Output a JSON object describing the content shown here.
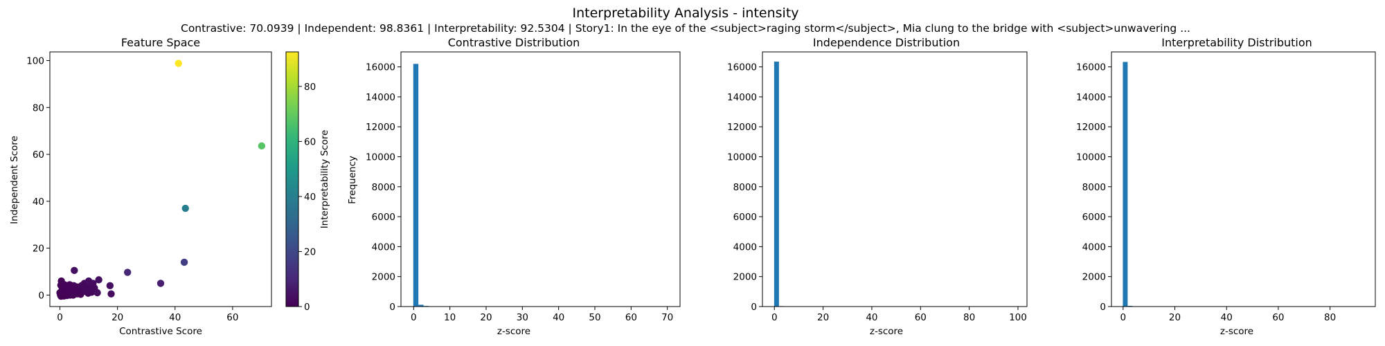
{
  "figure": {
    "title": "Interpretability Analysis - intensity",
    "subtitle": "Contrastive: 70.0939 | Independent: 98.8361 | Interpretability: 92.5304 | Story1: In the eye of the <subject>raging storm</subject>, Mia clung to the bridge with <subject>unwavering ..."
  },
  "colors": {
    "bar": "#1f77b4",
    "viridis": [
      "#440154",
      "#482878",
      "#3e4a89",
      "#31688e",
      "#26828e",
      "#1f9e89",
      "#35b779",
      "#6ece58",
      "#b5de2b",
      "#fde725"
    ]
  },
  "chart_data": [
    {
      "type": "scatter",
      "title": "Feature Space",
      "xlabel": "Contrastive Score",
      "ylabel": "Independent Score",
      "xlim": [
        -3.5,
        73.5
      ],
      "ylim": [
        -4.9,
        103.7
      ],
      "xticks": [
        0,
        20,
        40,
        60
      ],
      "yticks": [
        0,
        20,
        40,
        60,
        80,
        100
      ],
      "colorbar": {
        "label": "Interpretability Score",
        "range": [
          0,
          92.53
        ],
        "ticks": [
          0,
          20,
          40,
          60,
          80
        ]
      },
      "points": [
        {
          "x": 41.2,
          "y": 98.8,
          "c": 92.5
        },
        {
          "x": 70.1,
          "y": 63.6,
          "c": 68.0
        },
        {
          "x": 43.6,
          "y": 37.0,
          "c": 40.0
        },
        {
          "x": 43.2,
          "y": 14.0,
          "c": 17.0
        },
        {
          "x": 35.0,
          "y": 5.0,
          "c": 8.0
        },
        {
          "x": 23.5,
          "y": 9.7,
          "c": 10.0
        },
        {
          "x": 17.4,
          "y": 4.0,
          "c": 4.0
        },
        {
          "x": 17.8,
          "y": 0.5,
          "c": 3.0
        },
        {
          "x": 13.5,
          "y": 6.5,
          "c": 4.0
        },
        {
          "x": 13.0,
          "y": 1.0,
          "c": 3.0
        },
        {
          "x": 12.0,
          "y": 3.0,
          "c": 2.0
        },
        {
          "x": 11.5,
          "y": 5.0,
          "c": 3.0
        },
        {
          "x": 10.8,
          "y": 2.0,
          "c": 2.0
        },
        {
          "x": 10.0,
          "y": 6.0,
          "c": 3.0
        },
        {
          "x": 9.5,
          "y": 4.0,
          "c": 2.0
        },
        {
          "x": 9.0,
          "y": 1.5,
          "c": 2.0
        },
        {
          "x": 8.5,
          "y": 5.0,
          "c": 2.0
        },
        {
          "x": 8.0,
          "y": 2.5,
          "c": 1.0
        },
        {
          "x": 7.5,
          "y": 4.0,
          "c": 2.0
        },
        {
          "x": 7.0,
          "y": 1.0,
          "c": 1.0
        },
        {
          "x": 6.5,
          "y": 3.0,
          "c": 1.0
        },
        {
          "x": 6.0,
          "y": 0.5,
          "c": 1.0
        },
        {
          "x": 5.5,
          "y": 2.0,
          "c": 1.0
        },
        {
          "x": 5.0,
          "y": 10.5,
          "c": 4.0
        },
        {
          "x": 4.8,
          "y": 4.0,
          "c": 1.0
        },
        {
          "x": 4.5,
          "y": 1.0,
          "c": 1.0
        },
        {
          "x": 4.0,
          "y": 2.5,
          "c": 1.0
        },
        {
          "x": 3.5,
          "y": 0.0,
          "c": 0.5
        },
        {
          "x": 3.0,
          "y": 3.5,
          "c": 1.0
        },
        {
          "x": 2.5,
          "y": 1.0,
          "c": 0.5
        },
        {
          "x": 2.0,
          "y": 4.0,
          "c": 1.0
        },
        {
          "x": 1.5,
          "y": 0.5,
          "c": 0.5
        },
        {
          "x": 1.0,
          "y": 2.0,
          "c": 0.5
        },
        {
          "x": 0.5,
          "y": 6.0,
          "c": 1.0
        },
        {
          "x": 0.2,
          "y": 0.0,
          "c": 0.2
        },
        {
          "x": 0.0,
          "y": 1.0,
          "c": 0.2
        },
        {
          "x": 0.4,
          "y": -0.5,
          "c": 0.1
        },
        {
          "x": 0.8,
          "y": 3.0,
          "c": 0.5
        },
        {
          "x": 1.2,
          "y": 1.5,
          "c": 0.3
        },
        {
          "x": 1.8,
          "y": 2.8,
          "c": 0.5
        },
        {
          "x": 2.2,
          "y": 0.2,
          "c": 0.3
        },
        {
          "x": 2.8,
          "y": 1.8,
          "c": 0.5
        },
        {
          "x": 3.2,
          "y": 2.2,
          "c": 0.6
        },
        {
          "x": 3.8,
          "y": 1.2,
          "c": 0.5
        },
        {
          "x": 4.2,
          "y": 3.2,
          "c": 0.8
        },
        {
          "x": 5.2,
          "y": 0.8,
          "c": 0.6
        },
        {
          "x": 5.8,
          "y": 3.5,
          "c": 0.9
        },
        {
          "x": 6.2,
          "y": 1.8,
          "c": 0.7
        },
        {
          "x": 6.8,
          "y": 2.5,
          "c": 0.8
        },
        {
          "x": 7.2,
          "y": 0.3,
          "c": 0.5
        },
        {
          "x": 7.8,
          "y": 1.6,
          "c": 0.7
        },
        {
          "x": 8.2,
          "y": 3.8,
          "c": 1.2
        },
        {
          "x": 9.2,
          "y": 2.8,
          "c": 1.3
        },
        {
          "x": 9.8,
          "y": 0.8,
          "c": 1.0
        },
        {
          "x": 10.4,
          "y": 3.4,
          "c": 1.5
        },
        {
          "x": 11.0,
          "y": 1.2,
          "c": 1.4
        },
        {
          "x": 0.3,
          "y": 4.2,
          "c": 0.4
        },
        {
          "x": 1.6,
          "y": 4.4,
          "c": 0.6
        },
        {
          "x": 2.6,
          "y": 3.0,
          "c": 0.6
        },
        {
          "x": 3.4,
          "y": 4.4,
          "c": 0.9
        },
        {
          "x": 0.6,
          "y": 0.6,
          "c": 0.1
        },
        {
          "x": 1.4,
          "y": -0.4,
          "c": 0.1
        },
        {
          "x": 2.4,
          "y": -0.2,
          "c": 0.2
        },
        {
          "x": 4.6,
          "y": 0.0,
          "c": 0.4
        }
      ]
    },
    {
      "type": "histogram",
      "title": "Contrastive Distribution",
      "xlabel": "z-score",
      "ylabel": "Frequency",
      "xlim": [
        -3.5,
        73.5
      ],
      "ylim": [
        0,
        17000
      ],
      "xticks": [
        0,
        10,
        20,
        30,
        40,
        50,
        60,
        70
      ],
      "yticks": [
        0,
        2000,
        4000,
        6000,
        8000,
        10000,
        12000,
        14000,
        16000
      ],
      "bins": {
        "start": -0.1,
        "width": 1.41
      },
      "counts": [
        16200,
        120,
        40,
        12,
        5,
        3,
        2,
        1,
        1,
        1,
        1,
        0,
        0,
        0,
        0,
        0,
        1,
        0,
        0,
        0,
        0,
        0,
        0,
        0,
        1,
        0,
        0,
        0,
        0,
        0,
        1,
        1,
        0,
        0,
        0,
        0,
        0,
        0,
        0,
        0,
        0,
        0,
        0,
        0,
        0,
        0,
        0,
        0,
        0,
        1
      ]
    },
    {
      "type": "histogram",
      "title": "Independence Distribution",
      "xlabel": "z-score",
      "ylabel": "",
      "xlim": [
        -4.9,
        103.7
      ],
      "ylim": [
        0,
        17000
      ],
      "xticks": [
        0,
        20,
        40,
        60,
        80,
        100
      ],
      "yticks": [
        0,
        2000,
        4000,
        6000,
        8000,
        10000,
        12000,
        14000,
        16000
      ],
      "bins": {
        "start": -0.1,
        "width": 1.98
      },
      "counts": [
        16350,
        30,
        8,
        3,
        2,
        1,
        1,
        1,
        0,
        0,
        0,
        0,
        0,
        0,
        0,
        0,
        0,
        0,
        1,
        0,
        0,
        0,
        0,
        0,
        0,
        0,
        0,
        0,
        0,
        0,
        0,
        0,
        1,
        0,
        0,
        0,
        0,
        0,
        0,
        0,
        0,
        0,
        0,
        0,
        0,
        0,
        0,
        0,
        0,
        1
      ]
    },
    {
      "type": "histogram",
      "title": "Interpretability Distribution",
      "xlabel": "z-score",
      "ylabel": "",
      "xlim": [
        -4.5,
        97.5
      ],
      "ylim": [
        0,
        17000
      ],
      "xticks": [
        0,
        20,
        40,
        60,
        80
      ],
      "yticks": [
        0,
        2000,
        4000,
        6000,
        8000,
        10000,
        12000,
        14000,
        16000
      ],
      "bins": {
        "start": -0.1,
        "width": 1.86
      },
      "counts": [
        16330,
        45,
        12,
        4,
        2,
        1,
        1,
        0,
        0,
        0,
        1,
        0,
        0,
        0,
        0,
        0,
        0,
        0,
        0,
        0,
        0,
        1,
        0,
        0,
        0,
        0,
        0,
        0,
        0,
        0,
        0,
        0,
        0,
        0,
        0,
        0,
        1,
        0,
        0,
        0,
        0,
        0,
        0,
        0,
        0,
        0,
        0,
        0,
        0,
        1
      ]
    }
  ]
}
